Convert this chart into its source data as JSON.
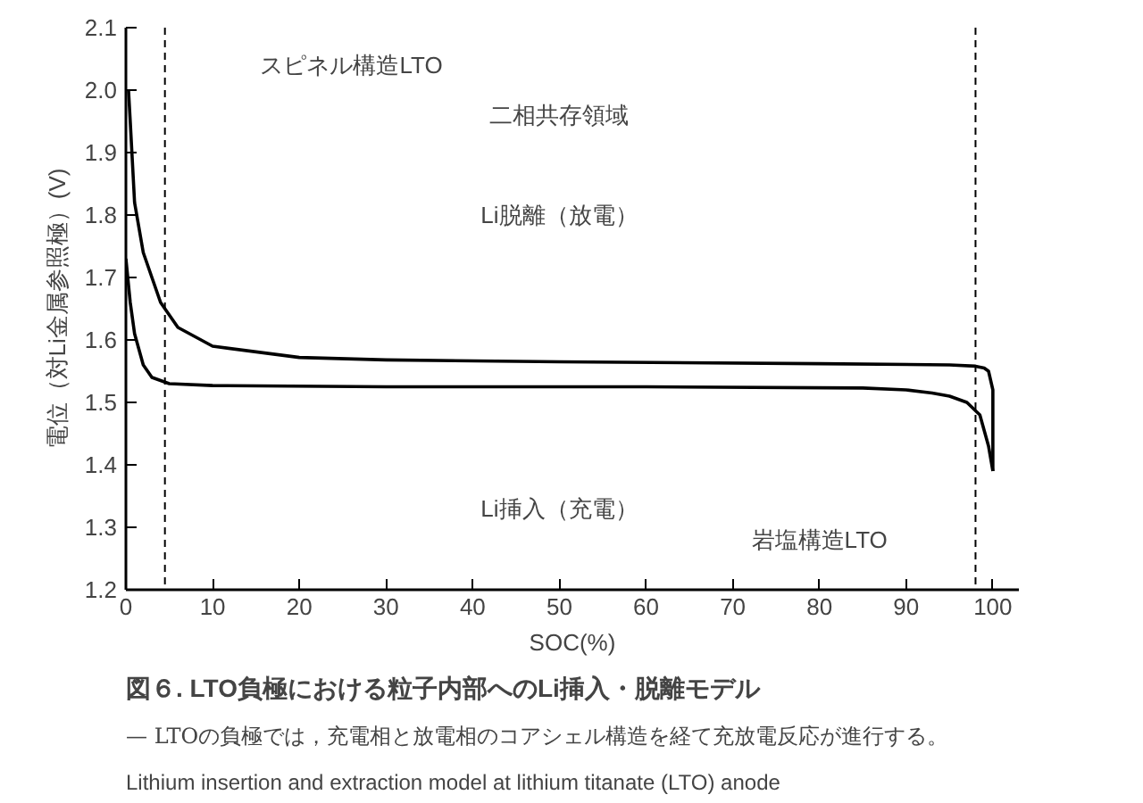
{
  "chart_data": {
    "type": "line",
    "title": "図６. LTO負極における粒子内部へのLi挿入・脱離モデル",
    "subtitle": "— LTOの負極では，充電相と放電相のコアシェル構造を経て充放電反応が進行する。",
    "xlabel": "SOC(%)",
    "ylabel": "電位（対Li金属参照極）(V)",
    "xlim": [
      0,
      103
    ],
    "ylim": [
      1.2,
      2.1
    ],
    "xticks": [
      0,
      10,
      20,
      30,
      40,
      50,
      60,
      70,
      80,
      90,
      100
    ],
    "yticks": [
      {
        "value": 1.2,
        "label": "1.2"
      },
      {
        "value": 1.3,
        "label": "1.3"
      },
      {
        "value": 1.4,
        "label": "1.4"
      },
      {
        "value": 1.5,
        "label": "1.5"
      },
      {
        "value": 1.6,
        "label": "1.6"
      },
      {
        "value": 1.7,
        "label": "1.7"
      },
      {
        "value": 1.8,
        "label": "1.8"
      },
      {
        "value": 1.9,
        "label": "1.9"
      },
      {
        "value": 2.0,
        "label": "2.0"
      },
      {
        "value": 2.1,
        "label": "2.1"
      }
    ],
    "grid": false,
    "marker": "none",
    "line_style": "solid",
    "series": [
      {
        "color": "#000000",
        "x": [
          0,
          0.5,
          1,
          2,
          3,
          4,
          5,
          10,
          30,
          60,
          85,
          90,
          93,
          95,
          97,
          98.5,
          99.5,
          100
        ],
        "values": [
          1.73,
          1.66,
          1.61,
          1.56,
          1.54,
          1.535,
          1.53,
          1.527,
          1.525,
          1.525,
          1.523,
          1.52,
          1.515,
          1.51,
          1.5,
          1.48,
          1.43,
          1.39
        ]
      },
      {
        "color": "#000000",
        "x": [
          100,
          100,
          99.5,
          99,
          98,
          95,
          80,
          50,
          30,
          20,
          10,
          6,
          4,
          2,
          1,
          0.5,
          0.3
        ],
        "values": [
          1.39,
          1.52,
          1.55,
          1.555,
          1.558,
          1.56,
          1.562,
          1.565,
          1.568,
          1.572,
          1.59,
          1.62,
          1.66,
          1.74,
          1.82,
          1.95,
          2.0
        ]
      }
    ],
    "ref_lines": [
      {
        "axis": "x",
        "value": 4.5,
        "label": null,
        "line_style": "dashed"
      },
      {
        "axis": "x",
        "value": 98,
        "label": null,
        "line_style": "dashed"
      }
    ],
    "annotations": [
      "スピネル構造LTO",
      "二相共存領域",
      "Li脱離（放電）",
      "Li挿入（充電）",
      "岩塩構造LTO",
      "Lithium insertion and extraction model at lithium titanate (LTO) anode"
    ]
  }
}
